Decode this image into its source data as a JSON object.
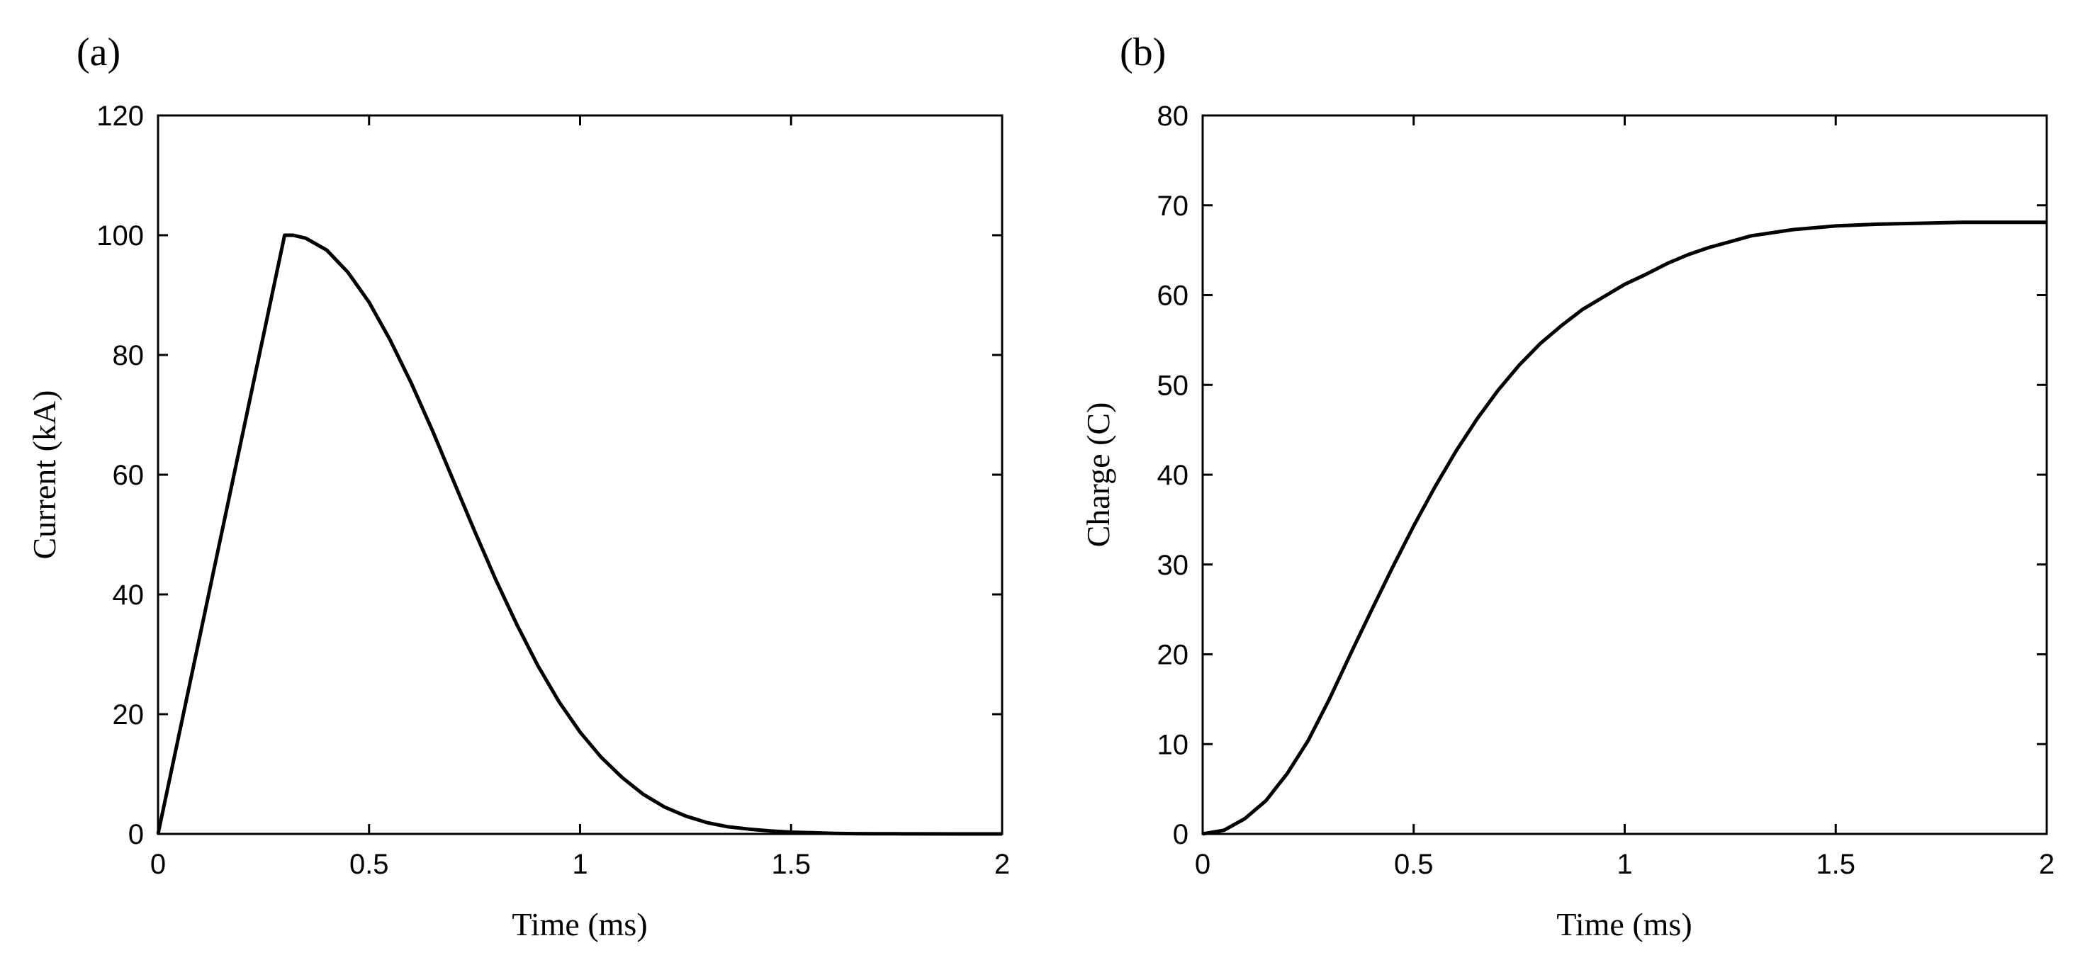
{
  "chart_data": [
    {
      "type": "line",
      "panel_label": "(a)",
      "title": "",
      "xlabel": "Time (ms)",
      "ylabel": "Current (kA)",
      "xlim": [
        0,
        2
      ],
      "ylim": [
        0,
        120
      ],
      "xticks": [
        0,
        0.5,
        1,
        1.5,
        2
      ],
      "xtick_labels": [
        "0",
        "0.5",
        "1",
        "1.5",
        "2"
      ],
      "yticks": [
        0,
        20,
        40,
        60,
        80,
        100,
        120
      ],
      "ytick_labels": [
        "0",
        "20",
        "40",
        "60",
        "80",
        "100",
        "120"
      ],
      "grid": false,
      "legend": "none",
      "color": "#000000",
      "series": [
        {
          "name": "Current",
          "x": [
            0,
            0.3,
            0.32,
            0.35,
            0.4,
            0.45,
            0.5,
            0.55,
            0.6,
            0.65,
            0.7,
            0.75,
            0.8,
            0.85,
            0.9,
            0.95,
            1.0,
            1.05,
            1.1,
            1.15,
            1.2,
            1.25,
            1.3,
            1.35,
            1.4,
            1.45,
            1.5,
            1.55,
            1.6,
            1.65,
            1.7,
            1.75,
            1.8,
            1.9,
            2.0
          ],
          "y": [
            0,
            100,
            100,
            99.5,
            97.5,
            93.8,
            88.8,
            82.5,
            75.3,
            67.4,
            59,
            50.6,
            42.5,
            35,
            28.1,
            22.1,
            17,
            12.8,
            9.4,
            6.6,
            4.5,
            3.0,
            1.9,
            1.2,
            0.8,
            0.5,
            0.3,
            0.2,
            0.1,
            0.05,
            0.03,
            0.02,
            0.01,
            0,
            0
          ]
        }
      ]
    },
    {
      "type": "line",
      "panel_label": "(b)",
      "title": "",
      "xlabel": "Time (ms)",
      "ylabel": "Charge (C)",
      "xlim": [
        0,
        2
      ],
      "ylim": [
        0,
        80
      ],
      "xticks": [
        0,
        0.5,
        1,
        1.5,
        2
      ],
      "xtick_labels": [
        "0",
        "0.5",
        "1",
        "1.5",
        "2"
      ],
      "yticks": [
        0,
        10,
        20,
        30,
        40,
        50,
        60,
        70,
        80
      ],
      "ytick_labels": [
        "0",
        "10",
        "20",
        "30",
        "40",
        "50",
        "60",
        "70",
        "80"
      ],
      "grid": false,
      "legend": "none",
      "color": "#000000",
      "series": [
        {
          "name": "Charge",
          "x": [
            0,
            0.05,
            0.1,
            0.15,
            0.2,
            0.25,
            0.3,
            0.35,
            0.4,
            0.45,
            0.5,
            0.55,
            0.6,
            0.65,
            0.7,
            0.75,
            0.8,
            0.85,
            0.9,
            0.95,
            1.0,
            1.05,
            1.1,
            1.15,
            1.2,
            1.3,
            1.4,
            1.5,
            1.6,
            1.7,
            1.8,
            1.9,
            2.0
          ],
          "y": [
            0,
            0.4,
            1.7,
            3.7,
            6.7,
            10.4,
            15.0,
            20.0,
            24.9,
            29.7,
            34.3,
            38.6,
            42.6,
            46.2,
            49.4,
            52.2,
            54.6,
            56.6,
            58.4,
            59.8,
            61.2,
            62.3,
            63.5,
            64.5,
            65.3,
            66.6,
            67.3,
            67.7,
            67.9,
            68.0,
            68.1,
            68.1,
            68.1
          ]
        }
      ]
    }
  ]
}
